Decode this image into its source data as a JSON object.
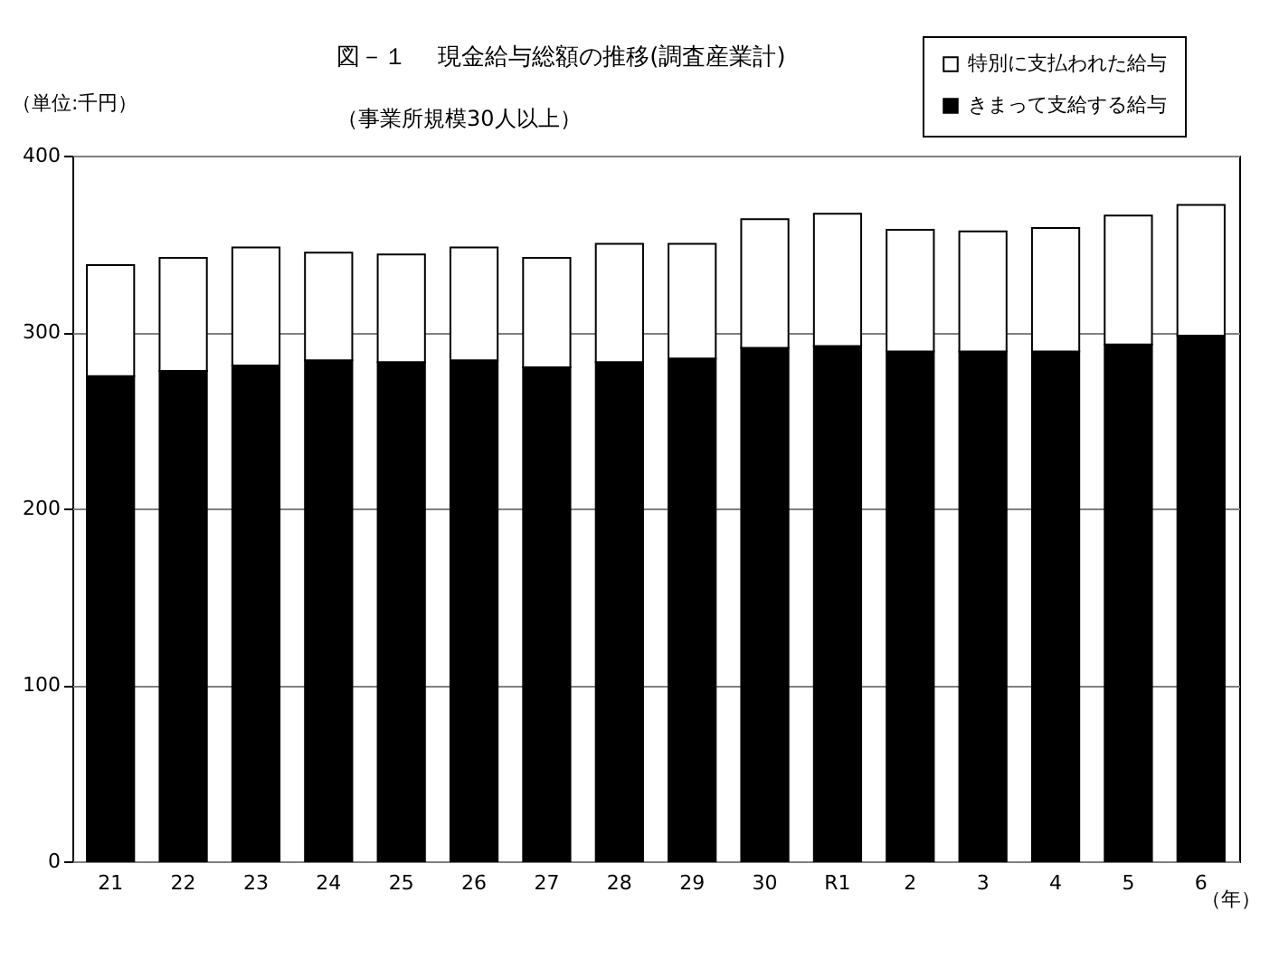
{
  "chart_data": {
    "type": "bar",
    "stacked": true,
    "title": "図－１　 現金給与総額の推移(調査産業計)",
    "subtitle": "（事業所規模30人以上）",
    "ylabel": "（単位:千円）",
    "xlabel": "（年）",
    "categories": [
      "21",
      "22",
      "23",
      "24",
      "25",
      "26",
      "27",
      "28",
      "29",
      "30",
      "R1",
      "2",
      "3",
      "4",
      "5",
      "6"
    ],
    "series": [
      {
        "name": "きまって支給する給与",
        "color": "#000000",
        "values": [
          275,
          278,
          281,
          284,
          283,
          284,
          280,
          283,
          285,
          291,
          292,
          289,
          289,
          289,
          293,
          298
        ]
      },
      {
        "name": "特別に支払われた給与",
        "color": "#ffffff",
        "values": [
          63,
          64,
          67,
          61,
          61,
          64,
          62,
          67,
          65,
          73,
          75,
          69,
          68,
          70,
          73,
          74
        ]
      }
    ],
    "ylim": [
      0,
      400
    ],
    "yticks": [
      0,
      100,
      200,
      300,
      400
    ],
    "grid": "y",
    "legend": "top right"
  }
}
